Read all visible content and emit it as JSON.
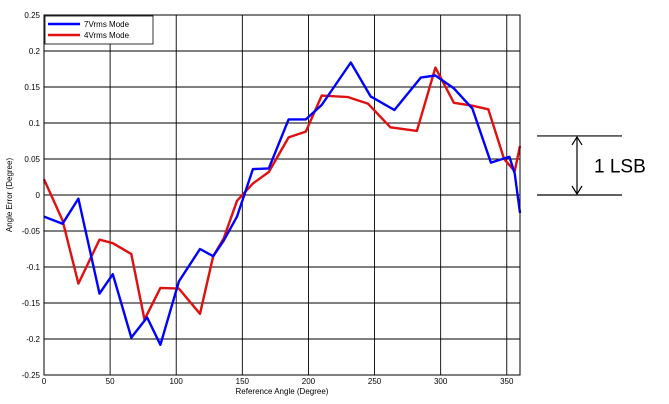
{
  "chart_data": {
    "type": "line",
    "title": "",
    "xlabel": "Reference Angle (Degree)",
    "ylabel": "Angle Error (Degree)",
    "xlim": [
      0,
      360
    ],
    "ylim": [
      -0.25,
      0.25
    ],
    "xticks": [
      0,
      50,
      100,
      150,
      200,
      250,
      300,
      350
    ],
    "yticks": [
      -0.25,
      -0.2,
      -0.15,
      -0.1,
      -0.05,
      0,
      0.05,
      0.1,
      0.15,
      0.2,
      0.25
    ],
    "xtick_labels": [
      "0",
      "50",
      "100",
      "150",
      "200",
      "250",
      "300",
      "350"
    ],
    "ytick_labels": [
      "-0.25",
      "-0.2",
      "-0.15",
      "-0.1",
      "-0.05",
      "0",
      "0.05",
      "0.1",
      "0.15",
      "0.2",
      "0.25"
    ],
    "grid": true,
    "legend_position": "top-left",
    "series": [
      {
        "name": "7Vrms Mode",
        "color": "#0000ff",
        "x": [
          0,
          14,
          26,
          42,
          52,
          66,
          78,
          88,
          102,
          118,
          128,
          136,
          146,
          158,
          170,
          185,
          198,
          210,
          232,
          247,
          265,
          285,
          296,
          310,
          324,
          338,
          352,
          356,
          360
        ],
        "y": [
          -0.03,
          -0.04,
          -0.005,
          -0.137,
          -0.11,
          -0.198,
          -0.17,
          -0.208,
          -0.12,
          -0.075,
          -0.085,
          -0.063,
          -0.03,
          0.036,
          0.037,
          0.105,
          0.105,
          0.125,
          0.184,
          0.137,
          0.118,
          0.163,
          0.166,
          0.148,
          0.12,
          0.045,
          0.053,
          0.03,
          -0.025
        ]
      },
      {
        "name": "4Vrms Mode",
        "color": "#e01010",
        "x": [
          0,
          14,
          26,
          42,
          52,
          66,
          76,
          88,
          102,
          118,
          128,
          136,
          146,
          158,
          170,
          185,
          198,
          210,
          230,
          245,
          262,
          282,
          296,
          310,
          324,
          336,
          348,
          356,
          360
        ],
        "y": [
          0.022,
          -0.035,
          -0.123,
          -0.062,
          -0.067,
          -0.082,
          -0.173,
          -0.129,
          -0.13,
          -0.165,
          -0.085,
          -0.06,
          -0.008,
          0.016,
          0.032,
          0.08,
          0.088,
          0.138,
          0.136,
          0.127,
          0.094,
          0.089,
          0.177,
          0.128,
          0.124,
          0.119,
          0.05,
          0.033,
          0.068
        ]
      }
    ],
    "annotation": {
      "label": "1 LSB",
      "from": 0,
      "to": 0.082
    }
  }
}
